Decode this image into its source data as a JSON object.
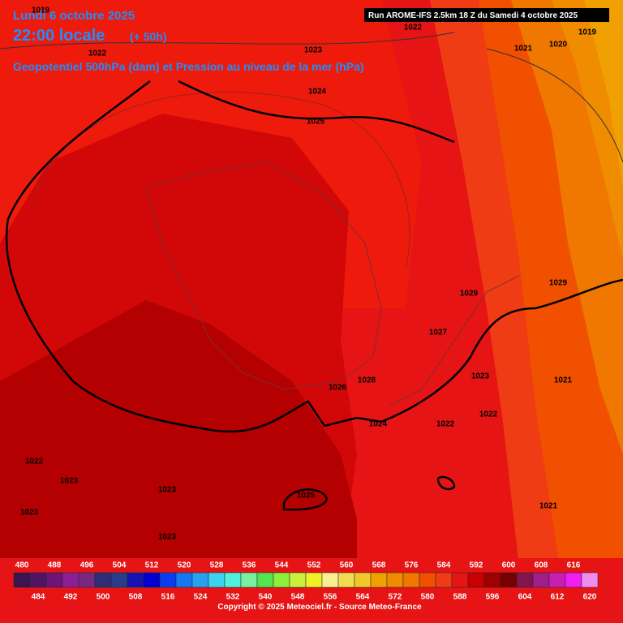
{
  "header": {
    "date": "Lundi 6 octobre 2025",
    "time": "22:00 locale",
    "lead": "(+ 50h)",
    "subtitle": "Geopotentiel 500hPa (dam) et Pression au niveau de la mer (hPa)",
    "run": "Run AROME-IFS 2.5km 18 Z du Samedi 4 octobre 2025"
  },
  "isobar_labels": [
    "1019",
    "1022",
    "1023",
    "1021",
    "1020",
    "1019",
    "1022",
    "1024",
    "1025",
    "1029",
    "1029",
    "1027",
    "1023",
    "1021",
    "1028",
    "1026",
    "1024",
    "1022",
    "1022",
    "1022",
    "1023",
    "1023",
    "1025",
    "1023",
    "1021",
    "1023"
  ],
  "legend": {
    "steps": [
      480,
      484,
      488,
      492,
      496,
      500,
      504,
      508,
      512,
      516,
      520,
      524,
      528,
      532,
      536,
      540,
      544,
      548,
      552,
      556,
      560,
      564,
      568,
      572,
      576,
      580,
      584,
      588,
      592,
      596,
      600,
      604,
      608,
      612,
      616,
      620
    ],
    "colors": [
      "#3c1450",
      "#501464",
      "#6e1478",
      "#8c1e96",
      "#782882",
      "#2d2d78",
      "#283c8c",
      "#1414b4",
      "#0000d2",
      "#0a3cf0",
      "#1478f0",
      "#28a0f0",
      "#3cd2f0",
      "#50f0dc",
      "#78f0a0",
      "#50e650",
      "#8cf03c",
      "#c8f03c",
      "#f0f028",
      "#f8f08c",
      "#f0dc50",
      "#f0c828",
      "#f0a000",
      "#f08c00",
      "#f07800",
      "#f05000",
      "#f03c14",
      "#e61414",
      "#c80000",
      "#a00000",
      "#780000",
      "#821450",
      "#a01e8c",
      "#c81eb4",
      "#f01ef0",
      "#f08cf0"
    ]
  },
  "footer": {
    "copyright": "Copyright © 2025 Meteociel.fr - Source Meteo-France"
  }
}
